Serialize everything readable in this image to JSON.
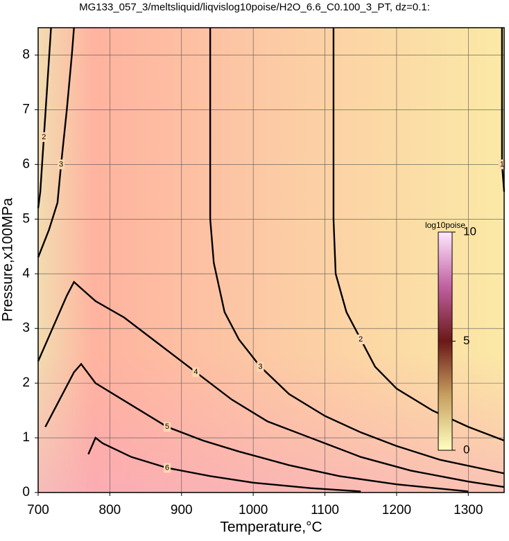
{
  "chart_data": {
    "type": "contour",
    "title": "MG133_057_3/meltsliquid/liqvislog10poise/H2O_6.6_C0.100_3_PT, dz=0.1:",
    "x_label": "Temperature,°C",
    "y_label": "Pressure,x100MPa",
    "xlim": [
      700,
      1350
    ],
    "ylim": [
      0,
      8.5
    ],
    "xticks": [
      700,
      800,
      900,
      1000,
      1100,
      1200,
      1300
    ],
    "yticks": [
      0,
      1,
      2,
      3,
      4,
      5,
      6,
      7,
      8
    ],
    "grid": true,
    "contours": [
      {
        "level": 1,
        "x": [
          1347,
          1347,
          1347,
          1350
        ],
        "y": [
          8.5,
          7.0,
          6.0,
          5.5
        ]
      },
      {
        "level": 2,
        "x": [
          718,
          713,
          708,
          703,
          700
        ],
        "y": [
          8.5,
          7.5,
          6.5,
          5.5,
          5.2
        ]
      },
      {
        "level": 3,
        "x": [
          750,
          747,
          740,
          732,
          727,
          715,
          700
        ],
        "y": [
          8.5,
          8.0,
          7.0,
          6.0,
          5.3,
          4.8,
          4.3
        ]
      },
      {
        "level": 2,
        "x": [
          1112,
          1112,
          1112,
          1115,
          1130,
          1150,
          1170,
          1200,
          1250,
          1300,
          1350
        ],
        "y": [
          8.5,
          6.5,
          5.0,
          4.0,
          3.3,
          2.8,
          2.3,
          1.9,
          1.5,
          1.2,
          0.95
        ]
      },
      {
        "level": 3,
        "x": [
          940,
          940,
          940,
          945,
          960,
          980,
          1010,
          1050,
          1100,
          1150,
          1200,
          1260,
          1350
        ],
        "y": [
          8.5,
          6.5,
          5.0,
          4.2,
          3.3,
          2.8,
          2.3,
          1.8,
          1.4,
          1.1,
          0.85,
          0.6,
          0.35
        ]
      },
      {
        "level": 4,
        "x": [
          700,
          720,
          740,
          750,
          780,
          820,
          870,
          920,
          970,
          1020,
          1080,
          1150,
          1220,
          1300,
          1350
        ],
        "y": [
          2.4,
          3.0,
          3.6,
          3.85,
          3.5,
          3.2,
          2.7,
          2.2,
          1.7,
          1.3,
          1.0,
          0.65,
          0.4,
          0.2,
          0.1
        ]
      },
      {
        "level": 5,
        "x": [
          710,
          730,
          750,
          760,
          780,
          830,
          880,
          930,
          980,
          1050,
          1120,
          1200,
          1300
        ],
        "y": [
          1.2,
          1.7,
          2.2,
          2.35,
          2.0,
          1.6,
          1.2,
          0.95,
          0.75,
          0.5,
          0.3,
          0.15,
          0.02
        ]
      },
      {
        "level": 6,
        "x": [
          770,
          780,
          790,
          830,
          880,
          940,
          1000,
          1080,
          1150
        ],
        "y": [
          0.7,
          1.0,
          0.9,
          0.65,
          0.45,
          0.3,
          0.18,
          0.08,
          0.02
        ]
      }
    ],
    "colorbar": {
      "label": "log10poise",
      "lim": [
        0,
        10
      ],
      "ticks": [
        0,
        5,
        10
      ]
    }
  }
}
